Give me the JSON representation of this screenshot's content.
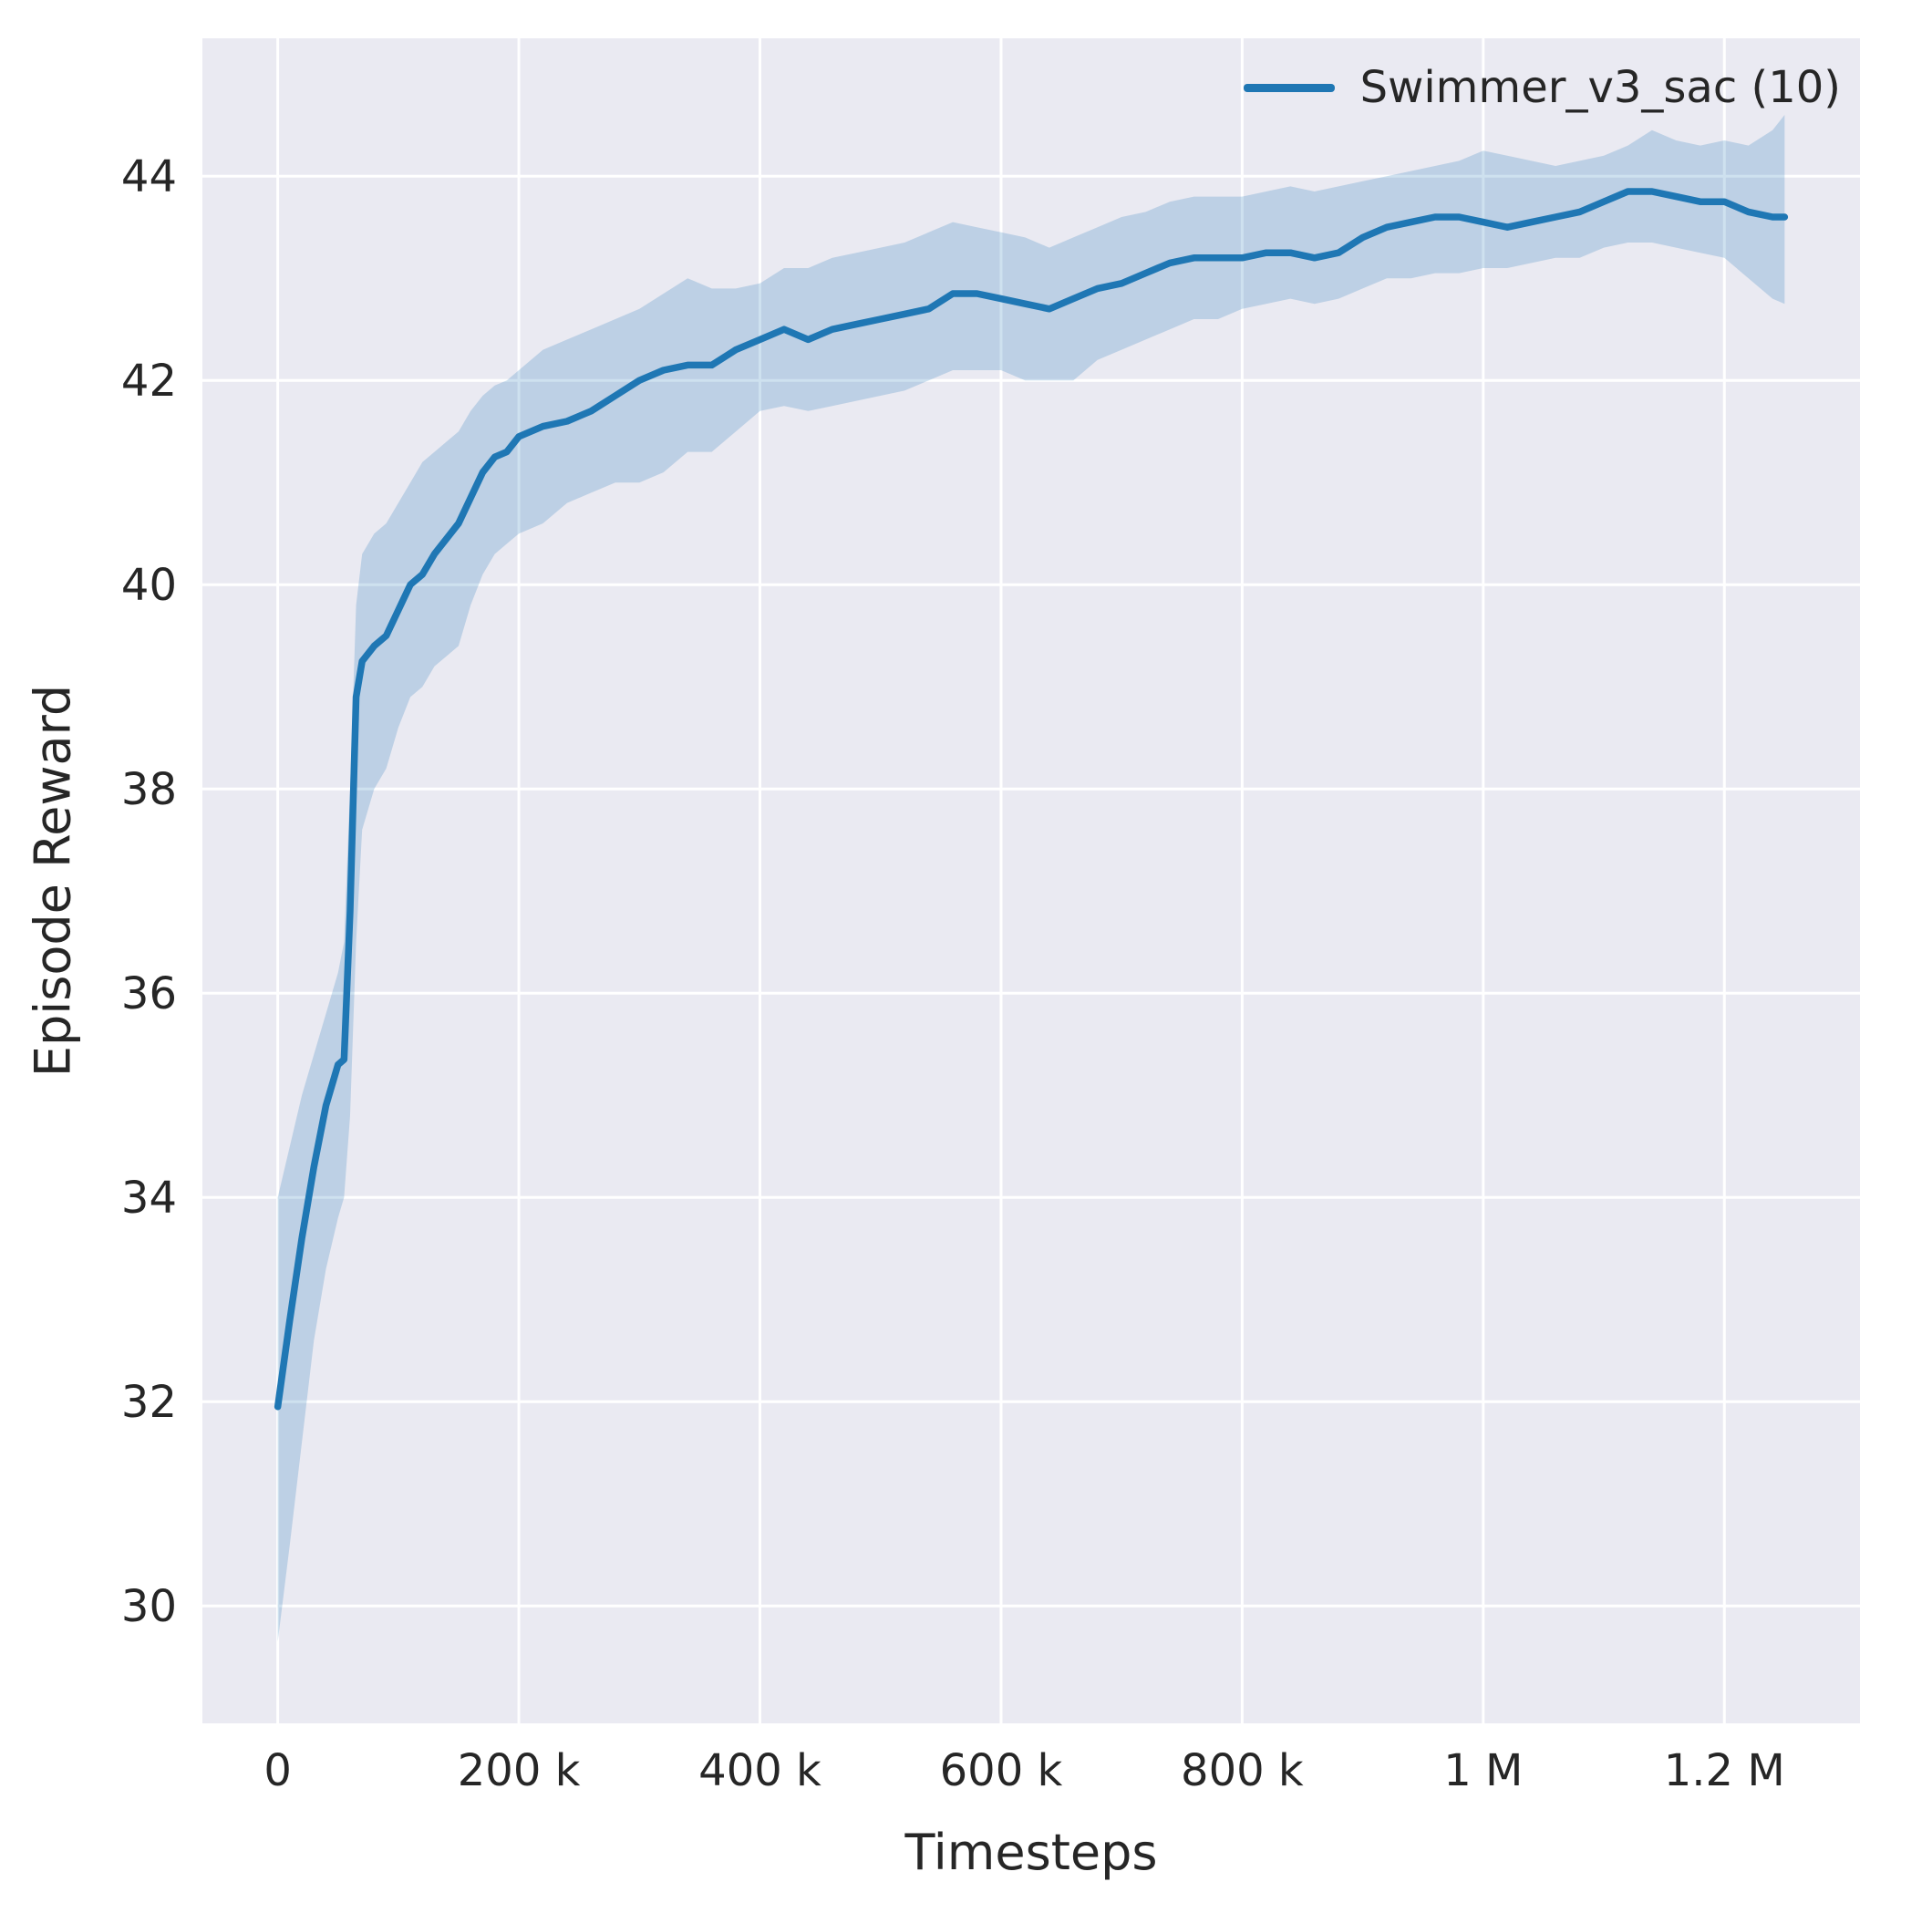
{
  "chart_data": {
    "type": "line",
    "title": "",
    "xlabel": "Timesteps",
    "ylabel": "Episode Reward",
    "xlim": [
      -62500,
      1312500
    ],
    "ylim": [
      28.85,
      45.35
    ],
    "grid": true,
    "legend_position": "upper right",
    "colors": {
      "line": "#1f77b4",
      "band": "#1f77b4",
      "band_opacity": 0.22,
      "axes_bg": "#eaeaf2",
      "grid": "#ffffff",
      "text": "#262626"
    },
    "xticks": {
      "values": [
        0,
        200000,
        400000,
        600000,
        800000,
        1000000,
        1200000
      ],
      "labels": [
        "0",
        "200 k",
        "400 k",
        "600 k",
        "800 k",
        "1 M",
        "1.2 M"
      ]
    },
    "yticks": {
      "values": [
        30,
        32,
        34,
        36,
        38,
        40,
        42,
        44
      ],
      "labels": [
        "30",
        "32",
        "34",
        "36",
        "38",
        "40",
        "42",
        "44"
      ]
    },
    "series": [
      {
        "name": "Swimmer_v3_sac (10)",
        "x": [
          0,
          10000,
          20000,
          30000,
          40000,
          50000,
          55000,
          60000,
          65000,
          70000,
          80000,
          90000,
          100000,
          110000,
          120000,
          130000,
          140000,
          150000,
          160000,
          170000,
          180000,
          190000,
          200000,
          220000,
          240000,
          260000,
          280000,
          300000,
          320000,
          340000,
          360000,
          380000,
          400000,
          420000,
          440000,
          460000,
          480000,
          500000,
          520000,
          540000,
          560000,
          580000,
          600000,
          620000,
          640000,
          660000,
          680000,
          700000,
          720000,
          740000,
          760000,
          780000,
          800000,
          820000,
          840000,
          860000,
          880000,
          900000,
          920000,
          940000,
          960000,
          980000,
          1000000,
          1020000,
          1040000,
          1060000,
          1080000,
          1100000,
          1120000,
          1140000,
          1160000,
          1180000,
          1200000,
          1220000,
          1240000,
          1250000
        ],
        "mean": [
          31.95,
          32.8,
          33.6,
          34.3,
          34.9,
          35.3,
          35.35,
          36.8,
          38.9,
          39.25,
          39.4,
          39.5,
          39.75,
          40.0,
          40.1,
          40.3,
          40.45,
          40.6,
          40.85,
          41.1,
          41.25,
          41.3,
          41.45,
          41.55,
          41.6,
          41.7,
          41.85,
          42.0,
          42.1,
          42.15,
          42.15,
          42.3,
          42.4,
          42.5,
          42.4,
          42.5,
          42.55,
          42.6,
          42.65,
          42.7,
          42.85,
          42.85,
          42.8,
          42.75,
          42.7,
          42.8,
          42.9,
          42.95,
          43.05,
          43.15,
          43.2,
          43.2,
          43.2,
          43.25,
          43.25,
          43.2,
          43.25,
          43.4,
          43.5,
          43.55,
          43.6,
          43.6,
          43.55,
          43.5,
          43.55,
          43.6,
          43.65,
          43.75,
          43.85,
          43.85,
          43.8,
          43.75,
          43.75,
          43.65,
          43.6,
          43.6
        ],
        "lower": [
          29.65,
          30.6,
          31.6,
          32.6,
          33.3,
          33.8,
          34.0,
          34.8,
          36.5,
          37.6,
          38.0,
          38.2,
          38.6,
          38.9,
          39.0,
          39.2,
          39.3,
          39.4,
          39.8,
          40.1,
          40.3,
          40.4,
          40.5,
          40.6,
          40.8,
          40.9,
          41.0,
          41.0,
          41.1,
          41.3,
          41.3,
          41.5,
          41.7,
          41.75,
          41.7,
          41.75,
          41.8,
          41.85,
          41.9,
          42.0,
          42.1,
          42.1,
          42.1,
          42.0,
          42.0,
          42.0,
          42.2,
          42.3,
          42.4,
          42.5,
          42.6,
          42.6,
          42.7,
          42.75,
          42.8,
          42.75,
          42.8,
          42.9,
          43.0,
          43.0,
          43.05,
          43.05,
          43.1,
          43.1,
          43.15,
          43.2,
          43.2,
          43.3,
          43.35,
          43.35,
          43.3,
          43.25,
          43.2,
          43.0,
          42.8,
          42.75
        ],
        "upper": [
          34.0,
          34.5,
          35.0,
          35.4,
          35.8,
          36.2,
          36.5,
          38.0,
          39.8,
          40.3,
          40.5,
          40.6,
          40.8,
          41.0,
          41.2,
          41.3,
          41.4,
          41.5,
          41.7,
          41.85,
          41.95,
          42.0,
          42.1,
          42.3,
          42.4,
          42.5,
          42.6,
          42.7,
          42.85,
          43.0,
          42.9,
          42.9,
          42.95,
          43.1,
          43.1,
          43.2,
          43.25,
          43.3,
          43.35,
          43.45,
          43.55,
          43.5,
          43.45,
          43.4,
          43.3,
          43.4,
          43.5,
          43.6,
          43.65,
          43.75,
          43.8,
          43.8,
          43.8,
          43.85,
          43.9,
          43.85,
          43.9,
          43.95,
          44.0,
          44.05,
          44.1,
          44.15,
          44.25,
          44.2,
          44.15,
          44.1,
          44.15,
          44.2,
          44.3,
          44.45,
          44.35,
          44.3,
          44.35,
          44.3,
          44.45,
          44.6
        ]
      }
    ]
  }
}
